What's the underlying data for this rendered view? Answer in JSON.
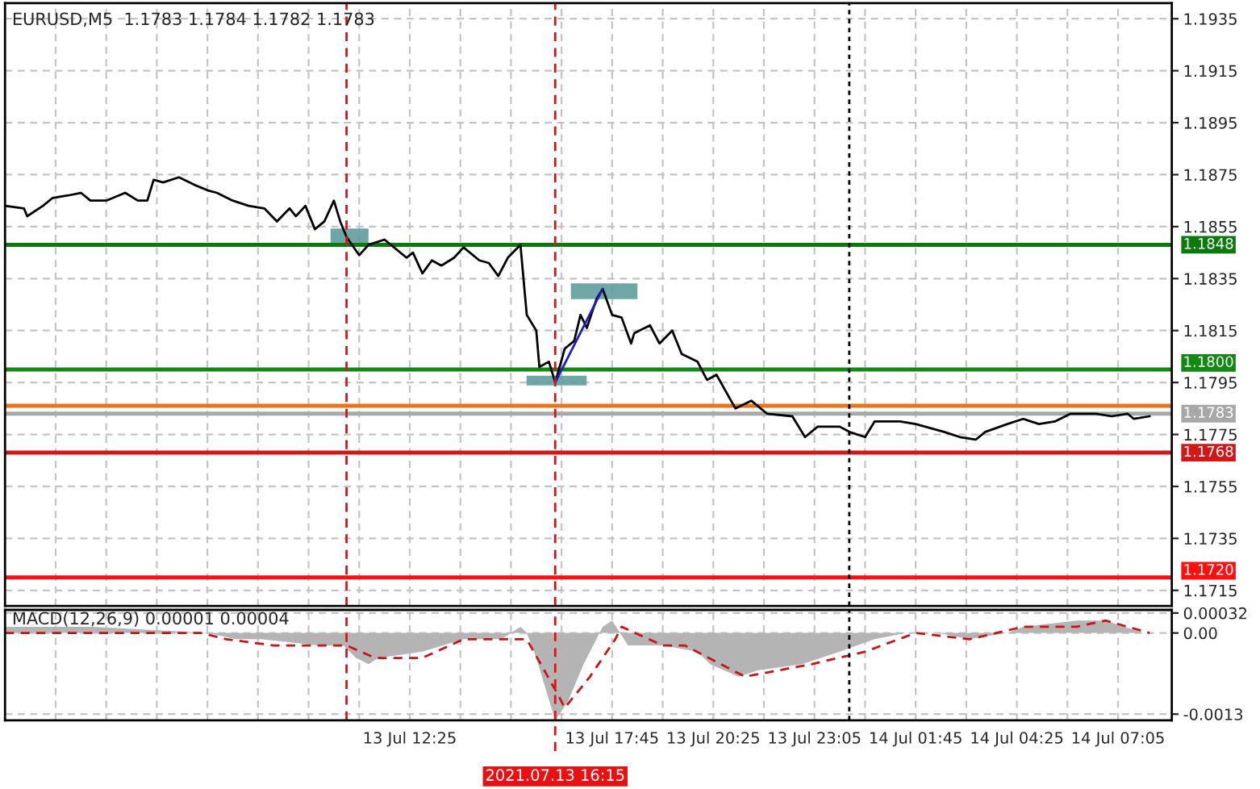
{
  "chart_data": [
    {
      "type": "line",
      "title": "EURUSD,M5  1.1783 1.1784 1.1782 1.1783",
      "grid": true,
      "tick_labels": "y",
      "xlim": [
        "2021-07-13T01:45",
        "2021-07-14T08:30"
      ],
      "ylim": [
        1.1709,
        1.1941
      ],
      "yticks": [
        1.1935,
        1.1915,
        1.1895,
        1.1875,
        1.1855,
        1.1835,
        1.1815,
        1.1795,
        1.1775,
        1.1755,
        1.1735,
        1.1715
      ],
      "xticks": [
        {
          "value": "2021-07-13T03:05",
          "label": null
        },
        {
          "value": "2021-07-13T04:25",
          "label": null
        },
        {
          "value": "2021-07-13T05:45",
          "label": null
        },
        {
          "value": "2021-07-13T07:05",
          "label": null
        },
        {
          "value": "2021-07-13T08:25",
          "label": null
        },
        {
          "value": "2021-07-13T09:45",
          "label": null
        },
        {
          "value": "2021-07-13T11:05",
          "label": null
        },
        {
          "value": "2021-07-13T12:25",
          "label": null
        },
        {
          "value": "2021-07-13T13:45",
          "label": null
        },
        {
          "value": "2021-07-13T15:05",
          "label": null
        },
        {
          "value": "2021-07-13T16:25",
          "label": null
        },
        {
          "value": "2021-07-13T17:45",
          "label": null
        },
        {
          "value": "2021-07-13T19:05",
          "label": null
        },
        {
          "value": "2021-07-13T20:25",
          "label": null
        },
        {
          "value": "2021-07-13T21:45",
          "label": null
        },
        {
          "value": "2021-07-13T23:05",
          "label": null
        },
        {
          "value": "2021-07-14T00:25",
          "label": null
        },
        {
          "value": "2021-07-14T01:45",
          "label": null
        },
        {
          "value": "2021-07-14T03:05",
          "label": null
        },
        {
          "value": "2021-07-14T04:25",
          "label": null
        },
        {
          "value": "2021-07-14T05:45",
          "label": null
        },
        {
          "value": "2021-07-14T07:05",
          "label": null
        }
      ],
      "series": [
        {
          "color": "#000000",
          "x": [
            "2021-07-13T01:45",
            "2021-07-13T02:15",
            "2021-07-13T02:20",
            "2021-07-13T02:45",
            "2021-07-13T03:00",
            "2021-07-13T03:25",
            "2021-07-13T03:45",
            "2021-07-13T04:00",
            "2021-07-13T04:25",
            "2021-07-13T04:55",
            "2021-07-13T05:15",
            "2021-07-13T05:30",
            "2021-07-13T05:40",
            "2021-07-13T05:55",
            "2021-07-13T06:20",
            "2021-07-13T06:45",
            "2021-07-13T07:05",
            "2021-07-13T07:20",
            "2021-07-13T07:45",
            "2021-07-13T08:10",
            "2021-07-13T08:35",
            "2021-07-13T08:55",
            "2021-07-13T09:15",
            "2021-07-13T09:25",
            "2021-07-13T09:40",
            "2021-07-13T09:55",
            "2021-07-13T10:10",
            "2021-07-13T10:25",
            "2021-07-13T10:35",
            "2021-07-13T10:45",
            "2021-07-13T11:05",
            "2021-07-13T11:20",
            "2021-07-13T11:45",
            "2021-07-13T11:55",
            "2021-07-13T12:20",
            "2021-07-13T12:30",
            "2021-07-13T12:45",
            "2021-07-13T13:00",
            "2021-07-13T13:15",
            "2021-07-13T13:35",
            "2021-07-13T13:50",
            "2021-07-13T14:15",
            "2021-07-13T14:30",
            "2021-07-13T14:45",
            "2021-07-13T15:00",
            "2021-07-13T15:20",
            "2021-07-13T15:30",
            "2021-07-13T15:45",
            "2021-07-13T15:50",
            "2021-07-13T16:05",
            "2021-07-13T16:15",
            "2021-07-13T16:30",
            "2021-07-13T16:45",
            "2021-07-13T16:55",
            "2021-07-13T17:05",
            "2021-07-13T17:20",
            "2021-07-13T17:30",
            "2021-07-13T17:45",
            "2021-07-13T18:00",
            "2021-07-13T18:15",
            "2021-07-13T18:20",
            "2021-07-13T18:45",
            "2021-07-13T19:00",
            "2021-07-13T19:20",
            "2021-07-13T19:35",
            "2021-07-13T20:00",
            "2021-07-13T20:15",
            "2021-07-13T20:30",
            "2021-07-13T21:00",
            "2021-07-13T21:25",
            "2021-07-13T21:50",
            "2021-07-13T22:30",
            "2021-07-13T22:50",
            "2021-07-13T23:10",
            "2021-07-13T23:45",
            "2021-07-14T00:00",
            "2021-07-14T00:25",
            "2021-07-14T00:40",
            "2021-07-14T01:20",
            "2021-07-14T01:45",
            "2021-07-14T02:30",
            "2021-07-14T02:55",
            "2021-07-14T03:20",
            "2021-07-14T03:35",
            "2021-07-14T04:10",
            "2021-07-14T04:35",
            "2021-07-14T05:00",
            "2021-07-14T05:25",
            "2021-07-14T05:50",
            "2021-07-14T06:30",
            "2021-07-14T06:55",
            "2021-07-14T07:20",
            "2021-07-14T07:30",
            "2021-07-14T07:55"
          ],
          "values": [
            1.1863,
            1.1862,
            1.1859,
            1.1863,
            1.1866,
            1.1867,
            1.1868,
            1.1865,
            1.1865,
            1.1868,
            1.1865,
            1.1865,
            1.1873,
            1.1872,
            1.1874,
            1.1871,
            1.1869,
            1.1868,
            1.1865,
            1.1863,
            1.1862,
            1.1857,
            1.1862,
            1.1859,
            1.1863,
            1.1854,
            1.1857,
            1.1865,
            1.1857,
            1.1851,
            1.1844,
            1.1848,
            1.185,
            1.1848,
            1.1843,
            1.1845,
            1.1837,
            1.1842,
            1.184,
            1.1843,
            1.1847,
            1.1842,
            1.1841,
            1.1836,
            1.1843,
            1.1848,
            1.1821,
            1.1815,
            1.1801,
            1.1803,
            1.1795,
            1.1808,
            1.1811,
            1.1821,
            1.1816,
            1.1827,
            1.1831,
            1.1821,
            1.182,
            1.181,
            1.1814,
            1.1817,
            1.181,
            1.1815,
            1.1806,
            1.1803,
            1.1796,
            1.1798,
            1.1785,
            1.1788,
            1.1783,
            1.1782,
            1.1774,
            1.1778,
            1.1778,
            1.1776,
            1.1774,
            1.178,
            1.178,
            1.1779,
            1.1776,
            1.1774,
            1.1773,
            1.1776,
            1.1779,
            1.1781,
            1.1779,
            1.178,
            1.1783,
            1.1783,
            1.1782,
            1.1783,
            1.1781,
            1.1782
          ]
        },
        {
          "color": "#1c1cc0",
          "x": [
            "2021-07-13T16:15",
            "2021-07-13T17:30"
          ],
          "values": [
            1.1795,
            1.1831
          ]
        }
      ],
      "ref_lines": [
        {
          "axis": "y",
          "value": 1.1848,
          "label": "1.1848",
          "color": "#0a7a0a",
          "line_style": "solid"
        },
        {
          "axis": "y",
          "value": 1.18,
          "label": "1.1800",
          "color": "#128a12",
          "line_style": "solid"
        },
        {
          "axis": "y",
          "value": 1.1786,
          "color": "#e8741c",
          "line_style": "solid"
        },
        {
          "axis": "y",
          "value": 1.1783,
          "label": "1.1783",
          "color": "#a8a8a8",
          "line_style": "solid"
        },
        {
          "axis": "y",
          "value": 1.1768,
          "label": "1.1768",
          "color": "#d01818",
          "line_style": "solid"
        },
        {
          "axis": "y",
          "value": 1.172,
          "label": "1.1720",
          "color": "#ff1010",
          "line_style": "solid"
        },
        {
          "axis": "x",
          "value": "2021-07-13T10:45",
          "color": "#d01818",
          "line_style": "dashed"
        },
        {
          "axis": "x",
          "value": "2021-07-13T16:15",
          "color": "#d01818",
          "line_style": "dashed"
        },
        {
          "axis": "x",
          "value": "2021-07-14T00:00",
          "color": "#000000",
          "line_style": "dotted"
        }
      ]
    },
    {
      "type": "area",
      "title": "MACD(12,26,9) 0.00001 0.00004",
      "grid": true,
      "xlim": [
        "2021-07-13T01:45",
        "2021-07-14T08:30"
      ],
      "ylim": [
        -0.0014,
        0.00037
      ],
      "yticks": [
        0.00032,
        {
          "value": 0,
          "label": "0.00"
        },
        -0.0013
      ],
      "xticks": [
        {
          "value": "2021-07-13T03:05",
          "label": null
        },
        {
          "value": "2021-07-13T04:25",
          "label": null
        },
        {
          "value": "2021-07-13T05:45",
          "label": null
        },
        {
          "value": "2021-07-13T07:05",
          "label": null
        },
        {
          "value": "2021-07-13T08:25",
          "label": null
        },
        {
          "value": "2021-07-13T09:45",
          "label": null
        },
        {
          "value": "2021-07-13T11:05",
          "label": null
        },
        {
          "value": "2021-07-13T12:25",
          "label": "13 Jul 12:25"
        },
        {
          "value": "2021-07-13T13:45",
          "label": null
        },
        {
          "value": "2021-07-13T15:05",
          "label": null
        },
        {
          "value": "2021-07-13T16:25",
          "label": null
        },
        {
          "value": "2021-07-13T17:45",
          "label": "13 Jul 17:45"
        },
        {
          "value": "2021-07-13T19:05",
          "label": null
        },
        {
          "value": "2021-07-13T20:25",
          "label": "13 Jul 20:25"
        },
        {
          "value": "2021-07-13T21:45",
          "label": null
        },
        {
          "value": "2021-07-13T23:05",
          "label": "13 Jul 23:05"
        },
        {
          "value": "2021-07-14T00:25",
          "label": null
        },
        {
          "value": "2021-07-14T01:45",
          "label": "14 Jul 01:45"
        },
        {
          "value": "2021-07-14T03:05",
          "label": null
        },
        {
          "value": "2021-07-14T04:25",
          "label": "14 Jul 04:25"
        },
        {
          "value": "2021-07-14T05:45",
          "label": null
        },
        {
          "value": "2021-07-14T07:05",
          "label": "14 Jul 07:05"
        }
      ],
      "series": [
        {
          "color": "#b4b4b4",
          "x": [
            "2021-07-13T01:45",
            "2021-07-13T04:05",
            "2021-07-13T07:05",
            "2021-07-13T07:50",
            "2021-07-13T08:30",
            "2021-07-13T10:00",
            "2021-07-13T10:40",
            "2021-07-13T11:00",
            "2021-07-13T11:20",
            "2021-07-13T11:35",
            "2021-07-13T12:45",
            "2021-07-13T13:50",
            "2021-07-13T14:50",
            "2021-07-13T15:20",
            "2021-07-13T15:30",
            "2021-07-13T15:45",
            "2021-07-13T16:15",
            "2021-07-13T16:35",
            "2021-07-13T17:00",
            "2021-07-13T17:30",
            "2021-07-13T17:45",
            "2021-07-13T18:10",
            "2021-07-13T19:05",
            "2021-07-13T20:00",
            "2021-07-13T20:20",
            "2021-07-13T21:05",
            "2021-07-13T21:35",
            "2021-07-13T22:45",
            "2021-07-13T23:45",
            "2021-07-14T00:40",
            "2021-07-14T01:30",
            "2021-07-14T02:20",
            "2021-07-14T03:10",
            "2021-07-14T04:10",
            "2021-07-14T04:35",
            "2021-07-14T06:00",
            "2021-07-14T06:45",
            "2021-07-14T07:45"
          ],
          "values": [
            0.0001,
            0.0001,
            0,
            -0.0001,
            -0.0001,
            -0.0002,
            -0.0002,
            -0.0004,
            -0.0005,
            -0.0004,
            -0.0003,
            -0.0001,
            -0.0001,
            0.0001,
            0,
            -0.0004,
            -0.0014,
            -0.0011,
            -0.0005,
            0.0001,
            0.0002,
            -0.0002,
            -0.0002,
            -0.0003,
            -0.0005,
            -0.0007,
            -0.0006,
            -0.0005,
            -0.0003,
            -0.0001,
            0,
            0,
            -0.0001,
            0,
            0.0001,
            0.0002,
            0.0002,
            0
          ]
        },
        {
          "type": "line",
          "color": "#c81414",
          "line_style": "dashed",
          "x": [
            "2021-07-13T01:45",
            "2021-07-13T06:55",
            "2021-07-13T07:35",
            "2021-07-13T08:50",
            "2021-07-13T10:00",
            "2021-07-13T10:45",
            "2021-07-13T11:30",
            "2021-07-13T12:45",
            "2021-07-13T13:50",
            "2021-07-13T14:55",
            "2021-07-13T15:30",
            "2021-07-13T16:20",
            "2021-07-13T16:30",
            "2021-07-13T17:10",
            "2021-07-13T17:50",
            "2021-07-13T18:00",
            "2021-07-13T19:05",
            "2021-07-13T19:40",
            "2021-07-13T21:15",
            "2021-07-13T23:00",
            "2021-07-14T00:25",
            "2021-07-14T01:45",
            "2021-07-14T03:10",
            "2021-07-14T04:35",
            "2021-07-14T06:00",
            "2021-07-14T06:45",
            "2021-07-14T07:55"
          ],
          "values": [
            0,
            0,
            -0.0001,
            -0.0002,
            -0.0002,
            -0.0002,
            -0.0004,
            -0.0004,
            -0.0001,
            -0.0001,
            -0.0001,
            -0.001,
            -0.0012,
            -0.0007,
            -0.0001,
            0.0001,
            -0.0002,
            -0.0002,
            -0.0007,
            -0.0005,
            -0.0003,
            0,
            -0.0001,
            0.0001,
            0.0001,
            0.0002,
            0
          ]
        }
      ],
      "ref_lines": [
        {
          "axis": "x",
          "value": "2021-07-13T10:45",
          "color": "#d01818",
          "line_style": "dashed"
        },
        {
          "axis": "x",
          "value": "2021-07-13T16:15",
          "label": "2021.07.13 16:15",
          "color": "#e81010",
          "line_style": "dashed"
        },
        {
          "axis": "x",
          "value": "2021-07-14T00:00",
          "color": "#000000",
          "line_style": "dotted"
        }
      ]
    }
  ]
}
